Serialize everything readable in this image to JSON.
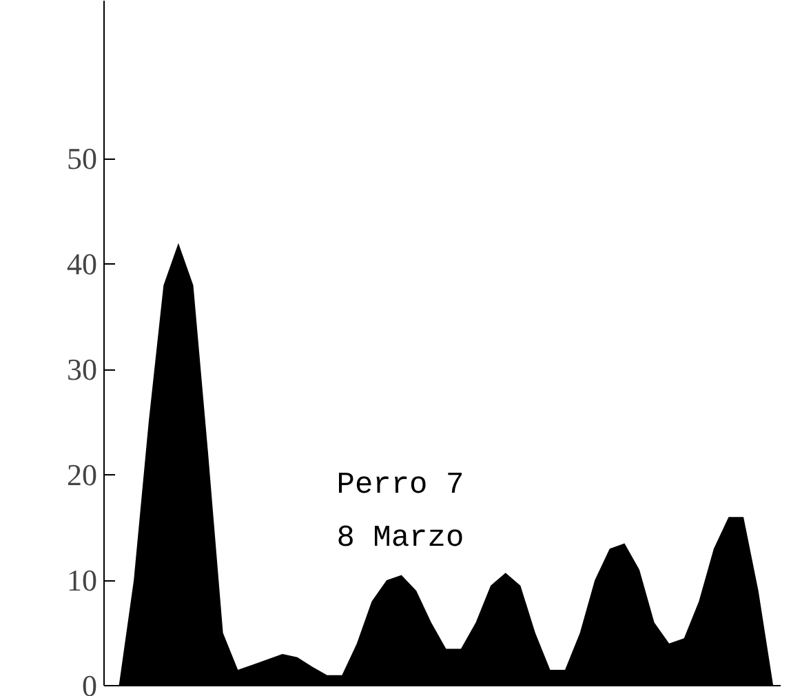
{
  "chart_data": {
    "type": "area",
    "categories": [
      null,
      null,
      null,
      null,
      null,
      null,
      null,
      null,
      null,
      null,
      null,
      null,
      null,
      null,
      null,
      null,
      null,
      null,
      null,
      null,
      null,
      null,
      null,
      null,
      null,
      null,
      null,
      null,
      null,
      null,
      null,
      null,
      null,
      null,
      null,
      null,
      null,
      null,
      null,
      null,
      null,
      null,
      null,
      null,
      null
    ],
    "series": [
      {
        "color": "#000000",
        "values": [
          0,
          10,
          25,
          38,
          42,
          38,
          22,
          5,
          1.5,
          2,
          2.5,
          3,
          2.7,
          1.8,
          1,
          1,
          4,
          8,
          10,
          10.5,
          9,
          6,
          3.5,
          3.5,
          6,
          9.5,
          10.7,
          9.5,
          5,
          1.5,
          1.5,
          5,
          10,
          13,
          13.5,
          11,
          6,
          4,
          4.5,
          8,
          13,
          16,
          16,
          9,
          0
        ]
      }
    ],
    "ylim": [
      0,
      65
    ],
    "yticks": [
      0,
      10,
      20,
      30,
      40,
      50
    ],
    "annotations": [
      "Perro 7",
      "8 Marzo"
    ],
    "grid": false
  }
}
